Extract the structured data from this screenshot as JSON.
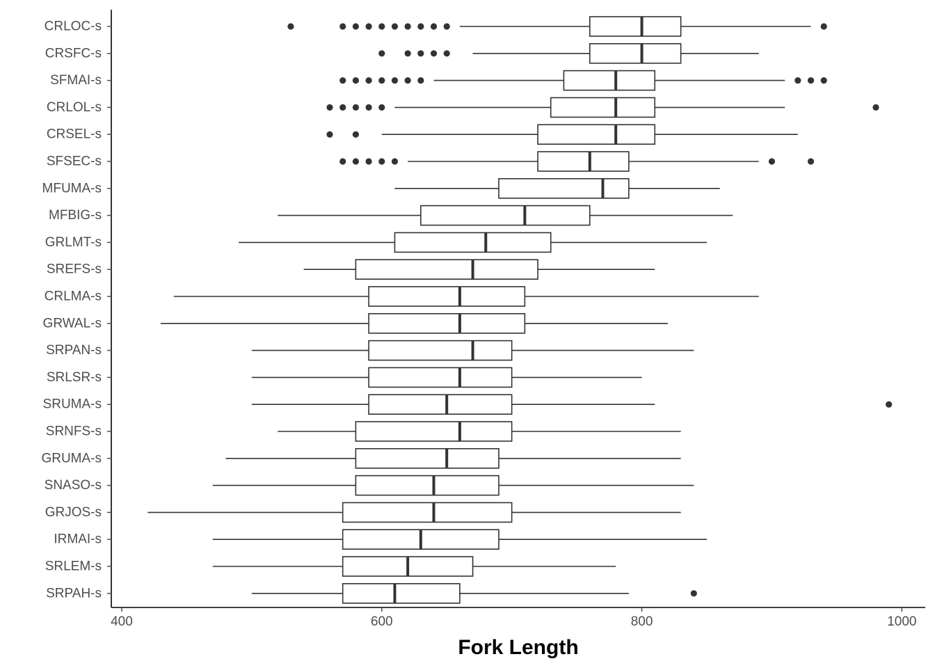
{
  "chart_data": {
    "type": "boxplot",
    "title": "",
    "xlabel": "Fork Length",
    "ylabel": "",
    "xlim": [
      392,
      1018
    ],
    "x_ticks": [
      400,
      600,
      800,
      1000
    ],
    "grid": false,
    "legend": "none",
    "colors": {
      "box_stroke": "#333333",
      "box_fill": "#ffffff",
      "axis": "#000000",
      "tick_text": "#4d4d4d"
    },
    "categories": [
      "CRLOC-s",
      "CRSFC-s",
      "SFMAI-s",
      "CRLOL-s",
      "CRSEL-s",
      "SFSEC-s",
      "MFUMA-s",
      "MFBIG-s",
      "GRLMT-s",
      "SREFS-s",
      "CRLMA-s",
      "GRWAL-s",
      "SRPAN-s",
      "SRLSR-s",
      "SRUMA-s",
      "SRNFS-s",
      "GRUMA-s",
      "SNASO-s",
      "GRJOS-s",
      "IRMAI-s",
      "SRLEM-s",
      "SRPAH-s"
    ],
    "boxes": [
      {
        "category": "CRLOC-s",
        "whisker_low": 660,
        "q1": 760,
        "median": 800,
        "q3": 830,
        "whisker_high": 930,
        "outliers": [
          530,
          570,
          580,
          590,
          600,
          610,
          620,
          630,
          640,
          650,
          940
        ]
      },
      {
        "category": "CRSFC-s",
        "whisker_low": 670,
        "q1": 760,
        "median": 800,
        "q3": 830,
        "whisker_high": 890,
        "outliers": [
          600,
          620,
          630,
          640,
          650
        ]
      },
      {
        "category": "SFMAI-s",
        "whisker_low": 640,
        "q1": 740,
        "median": 780,
        "q3": 810,
        "whisker_high": 910,
        "outliers": [
          570,
          580,
          590,
          600,
          610,
          620,
          630,
          920,
          930,
          940
        ]
      },
      {
        "category": "CRLOL-s",
        "whisker_low": 610,
        "q1": 730,
        "median": 780,
        "q3": 810,
        "whisker_high": 910,
        "outliers": [
          560,
          570,
          580,
          590,
          600,
          980
        ]
      },
      {
        "category": "CRSEL-s",
        "whisker_low": 600,
        "q1": 720,
        "median": 780,
        "q3": 810,
        "whisker_high": 920,
        "outliers": [
          560,
          580
        ]
      },
      {
        "category": "SFSEC-s",
        "whisker_low": 620,
        "q1": 720,
        "median": 760,
        "q3": 790,
        "whisker_high": 890,
        "outliers": [
          570,
          580,
          590,
          600,
          610,
          900,
          930
        ]
      },
      {
        "category": "MFUMA-s",
        "whisker_low": 610,
        "q1": 690,
        "median": 770,
        "q3": 790,
        "whisker_high": 860,
        "outliers": []
      },
      {
        "category": "MFBIG-s",
        "whisker_low": 520,
        "q1": 630,
        "median": 710,
        "q3": 760,
        "whisker_high": 870,
        "outliers": []
      },
      {
        "category": "GRLMT-s",
        "whisker_low": 490,
        "q1": 610,
        "median": 680,
        "q3": 730,
        "whisker_high": 850,
        "outliers": []
      },
      {
        "category": "SREFS-s",
        "whisker_low": 540,
        "q1": 580,
        "median": 670,
        "q3": 720,
        "whisker_high": 810,
        "outliers": []
      },
      {
        "category": "CRLMA-s",
        "whisker_low": 440,
        "q1": 590,
        "median": 660,
        "q3": 710,
        "whisker_high": 890,
        "outliers": []
      },
      {
        "category": "GRWAL-s",
        "whisker_low": 430,
        "q1": 590,
        "median": 660,
        "q3": 710,
        "whisker_high": 820,
        "outliers": []
      },
      {
        "category": "SRPAN-s",
        "whisker_low": 500,
        "q1": 590,
        "median": 670,
        "q3": 700,
        "whisker_high": 840,
        "outliers": []
      },
      {
        "category": "SRLSR-s",
        "whisker_low": 500,
        "q1": 590,
        "median": 660,
        "q3": 700,
        "whisker_high": 800,
        "outliers": []
      },
      {
        "category": "SRUMA-s",
        "whisker_low": 500,
        "q1": 590,
        "median": 650,
        "q3": 700,
        "whisker_high": 810,
        "outliers": [
          990
        ]
      },
      {
        "category": "SRNFS-s",
        "whisker_low": 520,
        "q1": 580,
        "median": 660,
        "q3": 700,
        "whisker_high": 830,
        "outliers": []
      },
      {
        "category": "GRUMA-s",
        "whisker_low": 480,
        "q1": 580,
        "median": 650,
        "q3": 690,
        "whisker_high": 830,
        "outliers": []
      },
      {
        "category": "SNASO-s",
        "whisker_low": 470,
        "q1": 580,
        "median": 640,
        "q3": 690,
        "whisker_high": 840,
        "outliers": []
      },
      {
        "category": "GRJOS-s",
        "whisker_low": 420,
        "q1": 570,
        "median": 640,
        "q3": 700,
        "whisker_high": 830,
        "outliers": []
      },
      {
        "category": "IRMAI-s",
        "whisker_low": 470,
        "q1": 570,
        "median": 630,
        "q3": 690,
        "whisker_high": 850,
        "outliers": []
      },
      {
        "category": "SRLEM-s",
        "whisker_low": 470,
        "q1": 570,
        "median": 620,
        "q3": 670,
        "whisker_high": 780,
        "outliers": []
      },
      {
        "category": "SRPAH-s",
        "whisker_low": 500,
        "q1": 570,
        "median": 610,
        "q3": 660,
        "whisker_high": 790,
        "outliers": [
          840
        ]
      }
    ]
  }
}
